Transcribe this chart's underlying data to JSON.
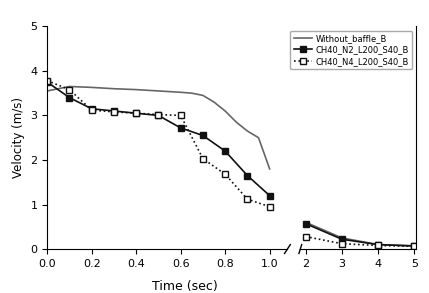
{
  "title": "",
  "xlabel": "Time (sec)",
  "ylabel": "Velocity (m/s)",
  "ylim": [
    0,
    5
  ],
  "series": [
    {
      "label": "Without_baffle_B",
      "linestyle": "-",
      "marker": "none",
      "color": "#666666",
      "linewidth": 1.2,
      "x": [
        0.0,
        0.1,
        0.2,
        0.3,
        0.4,
        0.5,
        0.6,
        0.65,
        0.7,
        0.75,
        0.8,
        0.85,
        0.9,
        0.95,
        1.0,
        2.0,
        3.0,
        4.0,
        5.0
      ],
      "y": [
        3.55,
        3.65,
        3.63,
        3.6,
        3.58,
        3.55,
        3.52,
        3.5,
        3.45,
        3.3,
        3.1,
        2.85,
        2.65,
        2.5,
        1.8,
        0.6,
        0.25,
        0.1,
        0.07
      ]
    },
    {
      "label": "CH40_N2_L200_S40_B",
      "linestyle": "-",
      "marker": "s",
      "markersize": 4.5,
      "color": "#111111",
      "linewidth": 1.2,
      "x": [
        0.0,
        0.1,
        0.2,
        0.3,
        0.4,
        0.5,
        0.6,
        0.7,
        0.8,
        0.9,
        1.0,
        2.0,
        3.0,
        4.0,
        5.0
      ],
      "y": [
        3.75,
        3.4,
        3.15,
        3.1,
        3.05,
        3.0,
        2.72,
        2.55,
        2.2,
        1.65,
        1.2,
        0.57,
        0.22,
        0.1,
        0.07
      ]
    },
    {
      "label": "CH40_N4_L200_S40_B",
      "linestyle": ":",
      "marker": "s",
      "markerfacecolor": "white",
      "markersize": 4.5,
      "color": "#111111",
      "linewidth": 1.2,
      "x": [
        0.0,
        0.1,
        0.2,
        0.3,
        0.4,
        0.5,
        0.6,
        0.7,
        0.8,
        0.9,
        1.0,
        2.0,
        3.0,
        4.0,
        5.0
      ],
      "y": [
        3.78,
        3.58,
        3.12,
        3.08,
        3.05,
        3.02,
        3.0,
        2.03,
        1.68,
        1.12,
        0.95,
        0.28,
        0.12,
        0.08,
        0.06
      ]
    }
  ],
  "x_ticks_left": [
    0.0,
    0.2,
    0.4,
    0.6,
    0.8,
    1.0
  ],
  "x_ticks_right": [
    2,
    3,
    4,
    5
  ],
  "y_ticks": [
    0,
    1,
    2,
    3,
    4,
    5
  ],
  "left_xlim": [
    0.0,
    1.08
  ],
  "right_xlim": [
    1.85,
    5.05
  ]
}
